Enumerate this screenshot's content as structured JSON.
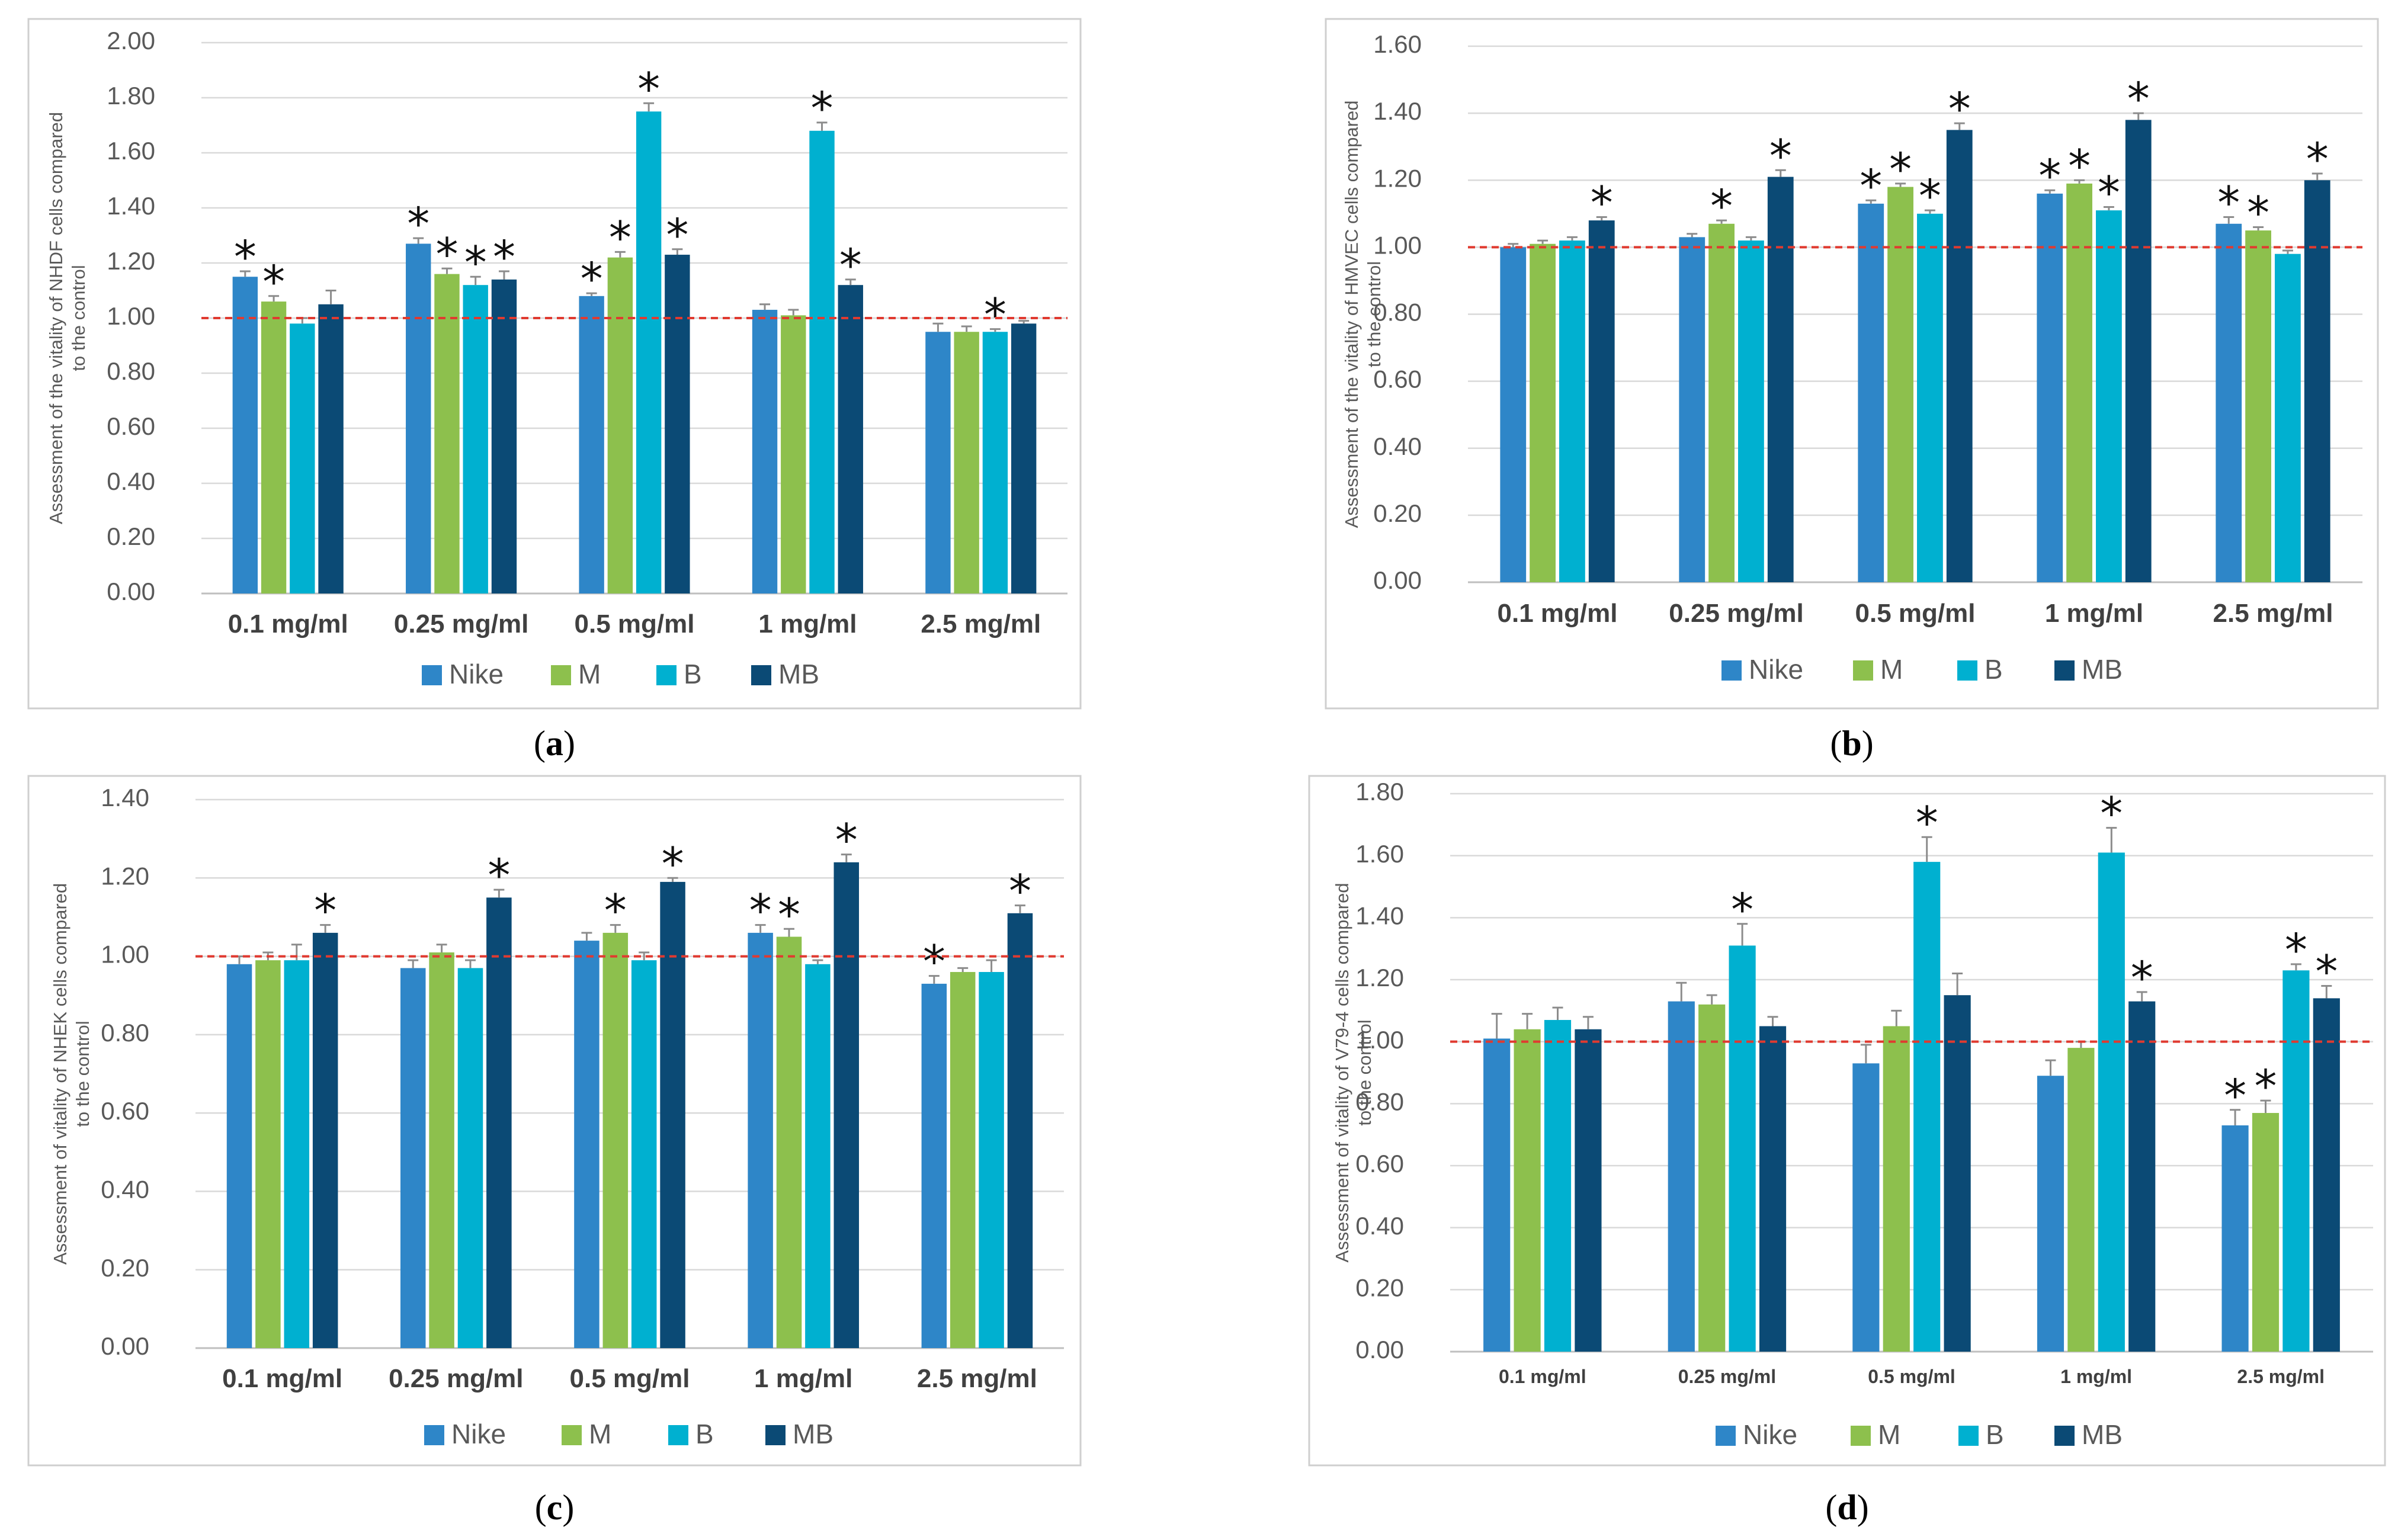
{
  "chart_data": [
    {
      "panel": "(a)",
      "type": "bar",
      "categories": [
        "0.1 mg/ml",
        "0.25 mg/ml",
        "0.5 mg/ml",
        "1 mg/ml",
        "2.5 mg/ml"
      ],
      "ylabel": [
        "Assessment  of the vitality of NHDF cells compared",
        "to the control"
      ],
      "ylim": [
        0,
        2.0
      ],
      "yticks": [
        "0.00",
        "0.20",
        "0.40",
        "0.60",
        "0.80",
        "1.00",
        "1.20",
        "1.40",
        "1.60",
        "1.80",
        "2.00"
      ],
      "reference_line": 1.0,
      "grid": true,
      "legend_position": "bottom",
      "series": [
        {
          "name": "Nike",
          "color": "#2e86c8",
          "values": [
            1.15,
            1.27,
            1.08,
            1.03,
            0.95
          ],
          "errors": [
            0.02,
            0.02,
            0.01,
            0.02,
            0.03
          ],
          "significant": [
            true,
            true,
            true,
            false,
            false
          ]
        },
        {
          "name": "M",
          "color": "#8dc04d",
          "values": [
            1.06,
            1.16,
            1.22,
            1.01,
            0.95
          ],
          "errors": [
            0.02,
            0.02,
            0.02,
            0.02,
            0.02
          ],
          "significant": [
            true,
            true,
            true,
            false,
            false
          ]
        },
        {
          "name": "B",
          "color": "#00b0d0",
          "values": [
            0.98,
            1.12,
            1.75,
            1.68,
            0.95
          ],
          "errors": [
            0.02,
            0.03,
            0.03,
            0.03,
            0.01
          ],
          "significant": [
            false,
            true,
            true,
            true,
            true
          ]
        },
        {
          "name": "MB",
          "color": "#0b4a75",
          "values": [
            1.05,
            1.14,
            1.23,
            1.12,
            0.98
          ],
          "errors": [
            0.05,
            0.03,
            0.02,
            0.02,
            0.01
          ],
          "significant": [
            false,
            true,
            true,
            true,
            false
          ]
        }
      ]
    },
    {
      "panel": "(b)",
      "type": "bar",
      "categories": [
        "0.1 mg/ml",
        "0.25 mg/ml",
        "0.5 mg/ml",
        "1 mg/ml",
        "2.5 mg/ml"
      ],
      "ylabel": [
        "Assessment  of the vitality of HMVEC  cells compared",
        "to the control"
      ],
      "ylim": [
        0,
        1.6
      ],
      "yticks": [
        "0.00",
        "0.20",
        "0.40",
        "0.60",
        "0.80",
        "1.00",
        "1.20",
        "1.40",
        "1.60"
      ],
      "reference_line": 1.0,
      "grid": true,
      "legend_position": "bottom",
      "series": [
        {
          "name": "Nike",
          "color": "#2e86c8",
          "values": [
            1.0,
            1.03,
            1.13,
            1.16,
            1.07
          ],
          "errors": [
            0.01,
            0.01,
            0.01,
            0.01,
            0.02
          ],
          "significant": [
            false,
            false,
            true,
            true,
            true
          ]
        },
        {
          "name": "M",
          "color": "#8dc04d",
          "values": [
            1.01,
            1.07,
            1.18,
            1.19,
            1.05
          ],
          "errors": [
            0.01,
            0.01,
            0.01,
            0.01,
            0.01
          ],
          "significant": [
            false,
            true,
            true,
            true,
            true
          ]
        },
        {
          "name": "B",
          "color": "#00b0d0",
          "values": [
            1.02,
            1.02,
            1.1,
            1.11,
            0.98
          ],
          "errors": [
            0.01,
            0.01,
            0.01,
            0.01,
            0.01
          ],
          "significant": [
            false,
            false,
            true,
            true,
            false
          ]
        },
        {
          "name": "MB",
          "color": "#0b4a75",
          "values": [
            1.08,
            1.21,
            1.35,
            1.38,
            1.2
          ],
          "errors": [
            0.01,
            0.02,
            0.02,
            0.02,
            0.02
          ],
          "significant": [
            true,
            true,
            true,
            true,
            true
          ]
        }
      ]
    },
    {
      "panel": "(c)",
      "type": "bar",
      "categories": [
        "0.1 mg/ml",
        "0.25 mg/ml",
        "0.5 mg/ml",
        "1 mg/ml",
        "2.5 mg/ml"
      ],
      "ylabel": [
        "Assessment  of vitality of NHEK cells compared",
        "to the control"
      ],
      "ylim": [
        0,
        1.4
      ],
      "yticks": [
        "0.00",
        "0.20",
        "0.40",
        "0.60",
        "0.80",
        "1.00",
        "1.20",
        "1.40"
      ],
      "reference_line": 1.0,
      "grid": true,
      "legend_position": "bottom",
      "series": [
        {
          "name": "Nike",
          "color": "#2e86c8",
          "values": [
            0.98,
            0.97,
            1.04,
            1.06,
            0.93
          ],
          "errors": [
            0.02,
            0.02,
            0.02,
            0.02,
            0.02
          ],
          "significant": [
            false,
            false,
            false,
            true,
            true
          ]
        },
        {
          "name": "M",
          "color": "#8dc04d",
          "values": [
            0.99,
            1.01,
            1.06,
            1.05,
            0.96
          ],
          "errors": [
            0.02,
            0.02,
            0.02,
            0.02,
            0.01
          ],
          "significant": [
            false,
            false,
            true,
            true,
            false
          ]
        },
        {
          "name": "B",
          "color": "#00b0d0",
          "values": [
            0.99,
            0.97,
            0.99,
            0.98,
            0.96
          ],
          "errors": [
            0.04,
            0.02,
            0.02,
            0.01,
            0.03
          ],
          "significant": [
            false,
            false,
            false,
            false,
            false
          ]
        },
        {
          "name": "MB",
          "color": "#0b4a75",
          "values": [
            1.06,
            1.15,
            1.19,
            1.24,
            1.11
          ],
          "errors": [
            0.02,
            0.02,
            0.01,
            0.02,
            0.02
          ],
          "significant": [
            true,
            true,
            true,
            true,
            true
          ]
        }
      ]
    },
    {
      "panel": "(d)",
      "type": "bar",
      "categories": [
        "0.1 mg/ml",
        "0.25 mg/ml",
        "0.5 mg/ml",
        "1 mg/ml",
        "2.5 mg/ml"
      ],
      "ylabel": [
        "Assessment  of vitality of V79-4 cells compared",
        "to the control"
      ],
      "ylim": [
        0,
        1.8
      ],
      "yticks": [
        "0.00",
        "0.20",
        "0.40",
        "0.60",
        "0.80",
        "1.00",
        "1.20",
        "1.40",
        "1.60",
        "1.80"
      ],
      "reference_line": 1.0,
      "grid": true,
      "legend_position": "bottom",
      "series": [
        {
          "name": "Nike",
          "color": "#2e86c8",
          "values": [
            1.01,
            1.13,
            0.93,
            0.89,
            0.73
          ],
          "errors": [
            0.08,
            0.06,
            0.06,
            0.05,
            0.05
          ],
          "significant": [
            false,
            false,
            false,
            false,
            true
          ]
        },
        {
          "name": "M",
          "color": "#8dc04d",
          "values": [
            1.04,
            1.12,
            1.05,
            0.98,
            0.77
          ],
          "errors": [
            0.05,
            0.03,
            0.05,
            0.02,
            0.04
          ],
          "significant": [
            false,
            false,
            false,
            false,
            true
          ]
        },
        {
          "name": "B",
          "color": "#00b0d0",
          "values": [
            1.07,
            1.31,
            1.58,
            1.61,
            1.23
          ],
          "errors": [
            0.04,
            0.07,
            0.08,
            0.08,
            0.02
          ],
          "significant": [
            false,
            true,
            true,
            true,
            true
          ]
        },
        {
          "name": "MB",
          "color": "#0b4a75",
          "values": [
            1.04,
            1.05,
            1.15,
            1.13,
            1.14
          ],
          "errors": [
            0.04,
            0.03,
            0.07,
            0.03,
            0.04
          ],
          "significant": [
            false,
            false,
            false,
            true,
            true
          ]
        }
      ]
    }
  ],
  "captions": {
    "a": {
      "open": "(",
      "letter": "a",
      "close": ")"
    },
    "b": {
      "open": "(",
      "letter": "b",
      "close": ")"
    },
    "c": {
      "open": "(",
      "letter": "c",
      "close": ")"
    },
    "d": {
      "open": "(",
      "letter": "d",
      "close": ")"
    }
  },
  "significance_marker": "*"
}
